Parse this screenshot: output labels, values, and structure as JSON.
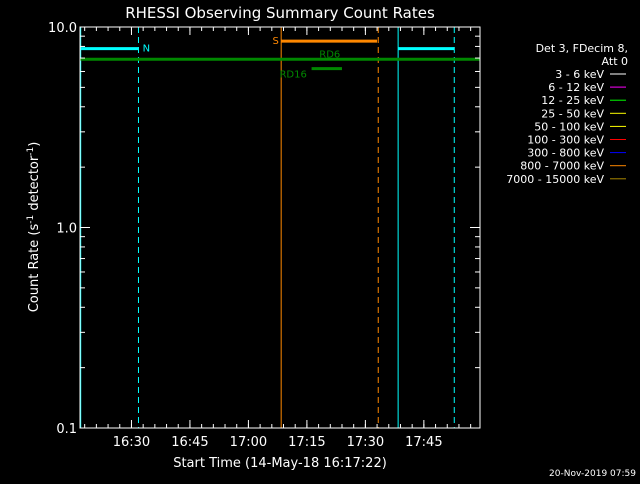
{
  "chart_data": {
    "type": "line",
    "title": "RHESSI Observing Summary Count Rates",
    "xlabel": "Start Time (14-May-18 16:17:22)",
    "ylabel_main": "Count Rate (s",
    "ylabel_sup1": "-1",
    "ylabel_mid": " detector",
    "ylabel_sup2": "-1",
    "ylabel_end": ")",
    "y_scale": "log",
    "ylim": [
      0.1,
      10.0
    ],
    "y_ticks": [
      {
        "value": 0.1,
        "label": "0.1"
      },
      {
        "value": 1.0,
        "label": "1.0"
      },
      {
        "value": 10.0,
        "label": "10.0"
      }
    ],
    "xlim_minutes": [
      16.28,
      17.99
    ],
    "x_ticks": [
      {
        "value": 16.5,
        "label": "16:30"
      },
      {
        "value": 16.75,
        "label": "16:45"
      },
      {
        "value": 17.0,
        "label": "17:00"
      },
      {
        "value": 17.25,
        "label": "17:15"
      },
      {
        "value": 17.5,
        "label": "17:30"
      },
      {
        "value": 17.75,
        "label": "17:45"
      }
    ],
    "legend_placement": "right",
    "legend_header": [
      "Det 3, FDecim 8,",
      "Att 0"
    ],
    "legend": [
      {
        "label": "3 - 6 keV",
        "color": "#ffffff"
      },
      {
        "label": "6 - 12 keV",
        "color": "#ff00ff"
      },
      {
        "label": "12 - 25 keV",
        "color": "#00ff00"
      },
      {
        "label": "25 - 50 keV",
        "color": "#ffff00"
      },
      {
        "label": "50 - 100 keV",
        "color": "#ffff00"
      },
      {
        "label": "100 - 300 keV",
        "color": "#ff0000"
      },
      {
        "label": "300 - 800 keV",
        "color": "#0000ff"
      },
      {
        "label": "800 - 7000 keV",
        "color": "#ff8800"
      },
      {
        "label": "7000 - 15000 keV",
        "color": "#aa8800"
      }
    ],
    "flag_bars": [
      {
        "label": "N",
        "color": "#00ffff",
        "level": 7.8,
        "segments": [
          [
            16.28,
            16.53
          ],
          [
            17.64,
            17.88
          ]
        ],
        "label_at": 16.535
      },
      {
        "label": "S",
        "color": "#ff8800",
        "level": 8.5,
        "segments": [
          [
            17.14,
            17.55
          ]
        ],
        "label_at": 17.09
      },
      {
        "label": "RD6",
        "color": "#008800",
        "level": 6.9,
        "segments": [
          [
            16.28,
            17.99
          ]
        ],
        "label_at": 17.29
      },
      {
        "label": "RD16",
        "color": "#008800",
        "level": 6.2,
        "segments": [
          [
            17.27,
            17.4
          ]
        ],
        "label_at": 17.12
      }
    ],
    "vertical_lines": [
      {
        "x": 16.53,
        "color": "#00ffff",
        "style": "dashed"
      },
      {
        "x": 17.14,
        "color": "#ff8800",
        "style": "solid"
      },
      {
        "x": 17.555,
        "color": "#ff8800",
        "style": "dashed"
      },
      {
        "x": 17.64,
        "color": "#00ffff",
        "style": "solid"
      },
      {
        "x": 17.88,
        "color": "#00ffff",
        "style": "dashed"
      },
      {
        "x": 16.283,
        "color": "#00ffff",
        "style": "solid"
      }
    ],
    "timestamp": "20-Nov-2019 07:59"
  }
}
